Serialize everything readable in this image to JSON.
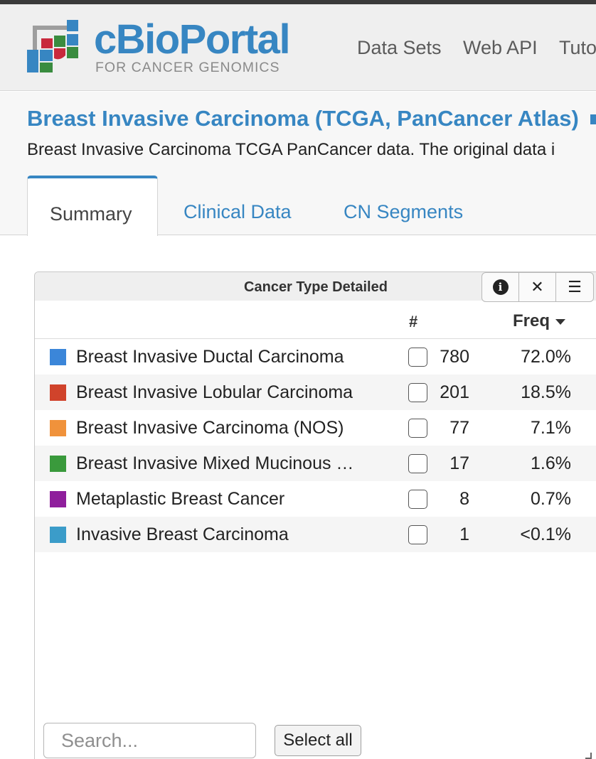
{
  "brand": {
    "title": "cBioPortal",
    "subtitle": "FOR CANCER GENOMICS",
    "colors": {
      "blue": "#3786c2",
      "red": "#c8293c",
      "green": "#3a8c3f",
      "grey": "#9e9e9e"
    }
  },
  "nav": {
    "items": [
      "Data Sets",
      "Web API",
      "Tuto"
    ]
  },
  "study": {
    "title": "Breast Invasive Carcinoma (TCGA, PanCancer Atlas)",
    "description": "Breast Invasive Carcinoma TCGA PanCancer data. The original data i"
  },
  "tabs": [
    {
      "label": "Summary",
      "active": true
    },
    {
      "label": "Clinical Data",
      "active": false
    },
    {
      "label": "CN Segments",
      "active": false
    }
  ],
  "chart": {
    "title": "Cancer Type Detailed",
    "controls": [
      "info-icon",
      "close-icon",
      "menu-icon"
    ],
    "columns": {
      "count": "#",
      "freq": "Freq"
    },
    "rows": [
      {
        "label": "Breast Invasive Ductal Carcinoma",
        "count": "780",
        "freq": "72.0%",
        "color": "#3b86d9"
      },
      {
        "label": "Breast Invasive Lobular Carcinoma",
        "count": "201",
        "freq": "18.5%",
        "color": "#d0432b"
      },
      {
        "label": "Breast Invasive Carcinoma (NOS)",
        "count": "77",
        "freq": "7.1%",
        "color": "#f0923b"
      },
      {
        "label": "Breast Invasive Mixed Mucinous …",
        "count": "17",
        "freq": "1.6%",
        "color": "#3a9a3c"
      },
      {
        "label": "Metaplastic Breast Cancer",
        "count": "8",
        "freq": "0.7%",
        "color": "#8f1f9c"
      },
      {
        "label": "Invasive Breast Carcinoma",
        "count": "1",
        "freq": "<0.1%",
        "color": "#3b9cc9"
      }
    ],
    "search_placeholder": "Search...",
    "select_all_label": "Select all"
  }
}
